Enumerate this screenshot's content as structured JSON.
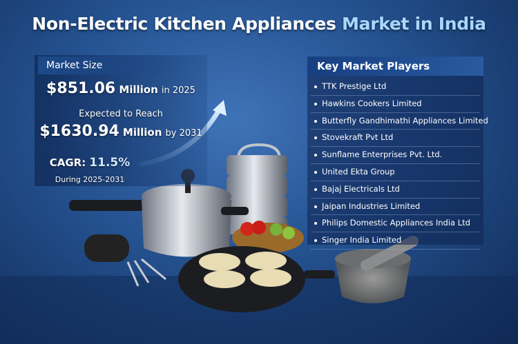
{
  "header": {
    "title": "Non-Electric Kitchen Appliances",
    "title_highlight": "Market in India"
  },
  "market_size": {
    "heading": "Market Size",
    "current": {
      "value": "$851.06",
      "unit": "Million",
      "period": "in 2025"
    },
    "projection_label": "Expected to Reach",
    "projected": {
      "value": "$1630.94",
      "unit": "Million",
      "period": "by 2031"
    },
    "cagr": {
      "label": "CAGR:",
      "value": "11.5%"
    },
    "cagr_period": "During 2025-2031"
  },
  "key_players": {
    "heading": "Key Market Players",
    "items": [
      "TTK Prestige Ltd",
      "Hawkins Cookers Limited",
      "Butterfly Gandhimathi Appliances Limited",
      "Stovekraft Pvt Ltd",
      "Sunflame Enterprises Pvt. Ltd.",
      "United Ekta Group",
      "Bajaj Electricals Ltd",
      "Jaipan Industries Limited",
      "Philips Domestic Appliances India Ltd",
      "Singer India Limited"
    ]
  }
}
